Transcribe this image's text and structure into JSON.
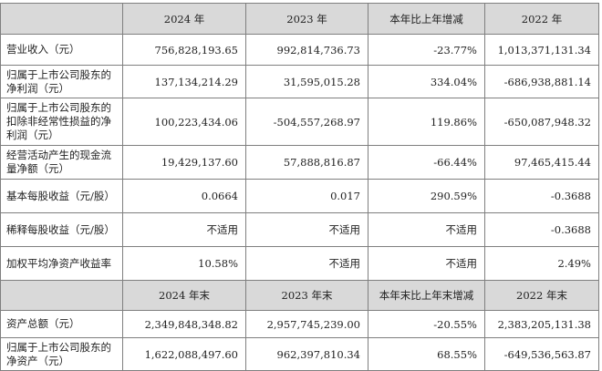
{
  "header1": [
    "",
    "2024 年",
    "2023 年",
    "本年比上年增减",
    "2022 年"
  ],
  "header2": [
    "",
    "2024 年末",
    "2023 年末",
    "本年末比上年末增减",
    "2022 年末"
  ],
  "rows_top": [
    {
      "label": "营业收入（元）",
      "v2024": "756,828,193.65",
      "v2023": "992,814,736.73",
      "change": "-23.77%",
      "v2022": "1,013,371,131.34"
    },
    {
      "label": "归属于上市公司股东的净利润（元）",
      "v2024": "137,134,214.29",
      "v2023": "31,595,015.28",
      "change": "334.04%",
      "v2022": "-686,938,881.14"
    },
    {
      "label": "归属于上市公司股东的扣除非经常性损益的净利润（元）",
      "v2024": "100,223,434.06",
      "v2023": "-504,557,268.97",
      "change": "119.86%",
      "v2022": "-650,087,948.32"
    },
    {
      "label": "经营活动产生的现金流量净额（元）",
      "v2024": "19,429,137.60",
      "v2023": "57,888,816.87",
      "change": "-66.44%",
      "v2022": "97,465,415.44"
    },
    {
      "label": "基本每股收益（元/股）",
      "v2024": "0.0664",
      "v2023": "0.017",
      "change": "290.59%",
      "v2022": "-0.3688"
    },
    {
      "label": "稀释每股收益（元/股）",
      "v2024": "不适用",
      "v2023": "不适用",
      "change": "不适用",
      "v2022": "-0.3688"
    },
    {
      "label": "加权平均净资产收益率",
      "v2024": "10.58%",
      "v2023": "不适用",
      "change": "不适用",
      "v2022": "2.49%"
    }
  ],
  "rows_bottom": [
    {
      "label": "资产总额（元）",
      "v2024": "2,349,848,348.82",
      "v2023": "2,957,745,239.00",
      "change": "-20.55%",
      "v2022": "2,383,205,131.38"
    },
    {
      "label": "归属于上市公司股东的净资产（元）",
      "v2024": "1,622,088,497.60",
      "v2023": "962,397,810.34",
      "change": "68.55%",
      "v2022": "-649,536,563.87"
    }
  ]
}
